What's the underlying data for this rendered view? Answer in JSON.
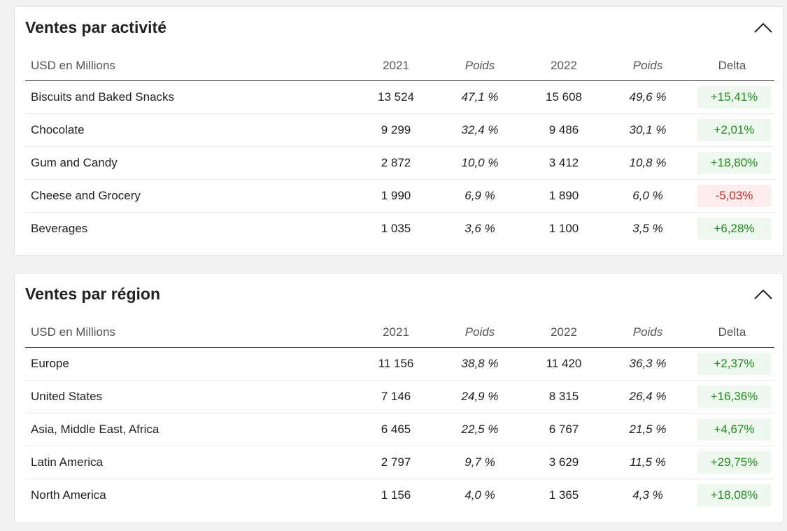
{
  "colors": {
    "positive_text": "#1f8a1f",
    "positive_bg": "#eef8ee",
    "negative_text": "#c62828",
    "negative_bg": "#fdecec"
  },
  "icons": {
    "collapse": "chevron-up-icon"
  },
  "activity": {
    "title": "Ventes par activité",
    "headers": {
      "label": "USD en Millions",
      "y2021": "2021",
      "w2021": "Poids",
      "y2022": "2022",
      "w2022": "Poids",
      "delta": "Delta"
    },
    "rows": [
      {
        "label": "Biscuits and Baked Snacks",
        "v2021": "13 524",
        "w2021": "47,1 %",
        "v2022": "15 608",
        "w2022": "49,6 %",
        "delta": "+15,41%",
        "trend": "pos"
      },
      {
        "label": "Chocolate",
        "v2021": "9 299",
        "w2021": "32,4 %",
        "v2022": "9 486",
        "w2022": "30,1 %",
        "delta": "+2,01%",
        "trend": "pos"
      },
      {
        "label": "Gum and Candy",
        "v2021": "2 872",
        "w2021": "10,0 %",
        "v2022": "3 412",
        "w2022": "10,8 %",
        "delta": "+18,80%",
        "trend": "pos"
      },
      {
        "label": "Cheese and Grocery",
        "v2021": "1 990",
        "w2021": "6,9 %",
        "v2022": "1 890",
        "w2022": "6,0 %",
        "delta": "-5,03%",
        "trend": "neg"
      },
      {
        "label": "Beverages",
        "v2021": "1 035",
        "w2021": "3,6 %",
        "v2022": "1 100",
        "w2022": "3,5 %",
        "delta": "+6,28%",
        "trend": "pos"
      }
    ]
  },
  "region": {
    "title": "Ventes par région",
    "headers": {
      "label": "USD en Millions",
      "y2021": "2021",
      "w2021": "Poids",
      "y2022": "2022",
      "w2022": "Poids",
      "delta": "Delta"
    },
    "rows": [
      {
        "label": "Europe",
        "v2021": "11 156",
        "w2021": "38,8 %",
        "v2022": "11 420",
        "w2022": "36,3 %",
        "delta": "+2,37%",
        "trend": "pos"
      },
      {
        "label": "United States",
        "v2021": "7 146",
        "w2021": "24,9 %",
        "v2022": "8 315",
        "w2022": "26,4 %",
        "delta": "+16,36%",
        "trend": "pos"
      },
      {
        "label": "Asia, Middle East, Africa",
        "v2021": "6 465",
        "w2021": "22,5 %",
        "v2022": "6 767",
        "w2022": "21,5 %",
        "delta": "+4,67%",
        "trend": "pos"
      },
      {
        "label": "Latin America",
        "v2021": "2 797",
        "w2021": "9,7 %",
        "v2022": "3 629",
        "w2022": "11,5 %",
        "delta": "+29,75%",
        "trend": "pos"
      },
      {
        "label": "North America",
        "v2021": "1 156",
        "w2021": "4,0 %",
        "v2022": "1 365",
        "w2022": "4,3 %",
        "delta": "+18,08%",
        "trend": "pos"
      }
    ]
  }
}
